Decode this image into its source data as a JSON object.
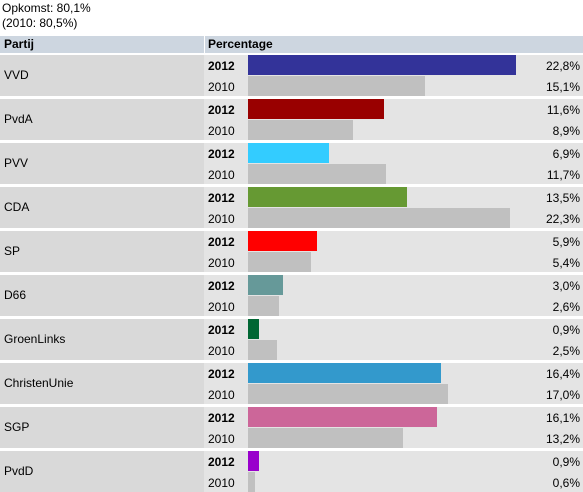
{
  "turnout": {
    "line1": "Opkomst: 80,1%",
    "line2": "(2010: 80,5%)"
  },
  "header": {
    "party_col": "Partij",
    "percentage_col": "Percentage"
  },
  "year_labels": {
    "current": "2012",
    "previous": "2010"
  },
  "colors": {
    "previous_bar": "#c0c0c0",
    "header_bg": "#cdd6e0"
  },
  "chart_data": {
    "type": "bar",
    "orientation": "horizontal",
    "title": "",
    "xlim": [
      0,
      22.8
    ],
    "categories": [
      "VVD",
      "PvdA",
      "PVV",
      "CDA",
      "SP",
      "D66",
      "GroenLinks",
      "ChristenUnie",
      "SGP",
      "PvdD"
    ],
    "series": [
      {
        "name": "2012",
        "values": [
          22.8,
          11.6,
          6.9,
          13.5,
          5.9,
          3.0,
          0.9,
          16.4,
          16.1,
          0.9
        ],
        "labels": [
          "22,8%",
          "11,6%",
          "6,9%",
          "13,5%",
          "5,9%",
          "3,0%",
          "0,9%",
          "16,4%",
          "16,1%",
          "0,9%"
        ],
        "colors": [
          "#333399",
          "#990000",
          "#33ccff",
          "#669933",
          "#ff0000",
          "#669999",
          "#006633",
          "#3399cc",
          "#cc6699",
          "#9900cc"
        ]
      },
      {
        "name": "2010",
        "values": [
          15.1,
          8.9,
          11.7,
          22.3,
          5.4,
          2.6,
          2.5,
          17.0,
          13.2,
          0.6
        ],
        "labels": [
          "15,1%",
          "8,9%",
          "11,7%",
          "22,3%",
          "5,4%",
          "2,6%",
          "2,5%",
          "17,0%",
          "13,2%",
          "0,6%"
        ]
      }
    ]
  }
}
